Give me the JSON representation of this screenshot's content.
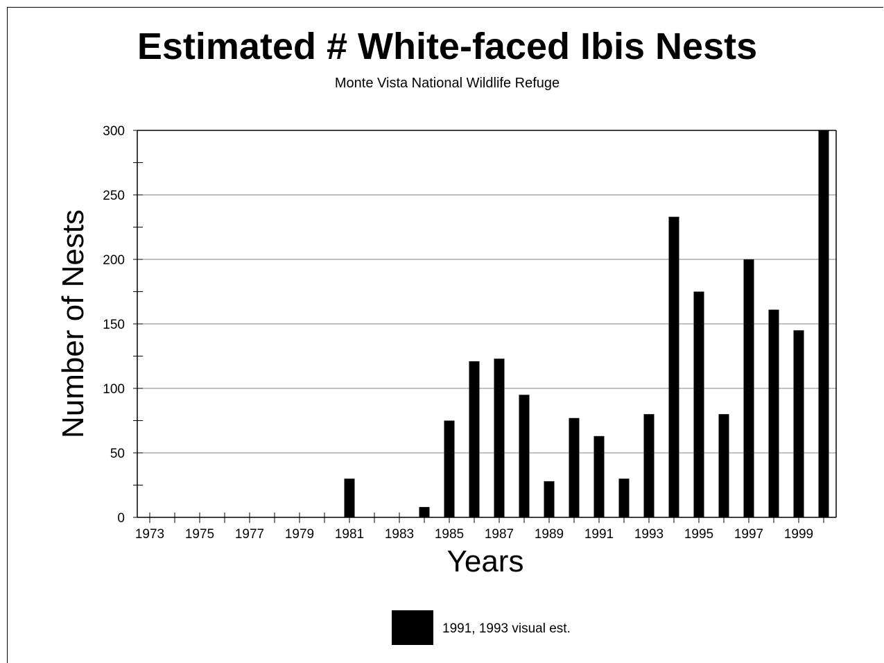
{
  "chart_data": {
    "type": "bar",
    "title": "Estimated # White-faced Ibis Nests",
    "subtitle": "Monte Vista National Wildlife Refuge",
    "xlabel": "Years",
    "ylabel": "Number of Nests",
    "ylim": [
      0,
      300
    ],
    "y_ticks": [
      "0",
      "50",
      "100",
      "150",
      "200",
      "250",
      "300"
    ],
    "x_tick_labels": [
      "1973",
      "1975",
      "1977",
      "1979",
      "1981",
      "1983",
      "1985",
      "1987",
      "1989",
      "1991",
      "1993",
      "1995",
      "1997",
      "1999"
    ],
    "x": [
      1981,
      1984,
      1985,
      1986,
      1987,
      1988,
      1989,
      1990,
      1991,
      1992,
      1993,
      1994,
      1995,
      1996,
      1997,
      1998,
      1999,
      2000
    ],
    "values": [
      30,
      8,
      75,
      121,
      123,
      95,
      28,
      77,
      63,
      30,
      80,
      233,
      175,
      80,
      200,
      161,
      145,
      300
    ],
    "bar_color": "#000000",
    "grid": true,
    "legend": {
      "label": "1991, 1993 visual est.",
      "position": "bottom-center",
      "swatch_color": "#000000"
    }
  }
}
